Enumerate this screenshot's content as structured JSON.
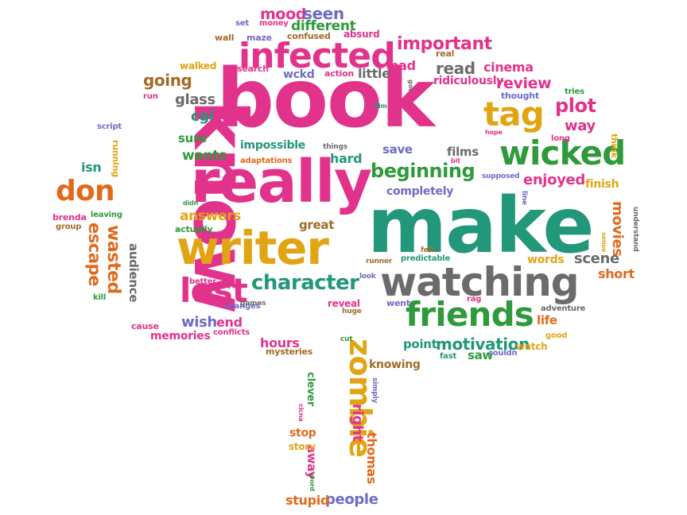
{
  "palette": {
    "pink": "#e2338c",
    "green": "#2f9a3c",
    "orange": "#e06a1c",
    "gold": "#e1a514",
    "teal": "#23977a",
    "gray": "#6b6b6b",
    "purple": "#6e6bc4",
    "brown": "#a26c28"
  },
  "words": [
    {
      "text": "book",
      "color": "pink"
    },
    {
      "text": "make",
      "color": "teal"
    },
    {
      "text": "know",
      "color": "pink"
    },
    {
      "text": "really",
      "color": "pink"
    },
    {
      "text": "writer",
      "color": "gold"
    },
    {
      "text": "watching",
      "color": "gray"
    },
    {
      "text": "infected",
      "color": "pink"
    },
    {
      "text": "wicked",
      "color": "green"
    },
    {
      "text": "friends",
      "color": "green"
    },
    {
      "text": "lost",
      "color": "pink"
    },
    {
      "text": "tag",
      "color": "gold"
    },
    {
      "text": "zombie",
      "color": "gold"
    },
    {
      "text": "character",
      "color": "teal"
    },
    {
      "text": "don",
      "color": "orange"
    },
    {
      "text": "beginning",
      "color": "green"
    },
    {
      "text": "important",
      "color": "pink"
    },
    {
      "text": "plot",
      "color": "pink"
    },
    {
      "text": "wasted",
      "color": "orange"
    },
    {
      "text": "escape",
      "color": "orange"
    },
    {
      "text": "motivation",
      "color": "teal"
    },
    {
      "text": "read",
      "color": "gray"
    },
    {
      "text": "review",
      "color": "pink"
    },
    {
      "text": "going",
      "color": "brown"
    },
    {
      "text": "glass",
      "color": "gray"
    },
    {
      "text": "mood",
      "color": "pink"
    },
    {
      "text": "seen",
      "color": "purple"
    },
    {
      "text": "different",
      "color": "green"
    },
    {
      "text": "cinema",
      "color": "pink"
    },
    {
      "text": "way",
      "color": "pink"
    },
    {
      "text": "enjoyed",
      "color": "pink"
    },
    {
      "text": "movies",
      "color": "orange"
    },
    {
      "text": "scene",
      "color": "gray"
    },
    {
      "text": "short",
      "color": "orange"
    },
    {
      "text": "answers",
      "color": "gold"
    },
    {
      "text": "wants",
      "color": "green"
    },
    {
      "text": "impossible",
      "color": "teal"
    },
    {
      "text": "hard",
      "color": "teal"
    },
    {
      "text": "save",
      "color": "purple"
    },
    {
      "text": "films",
      "color": "gray"
    },
    {
      "text": "completely",
      "color": "purple"
    },
    {
      "text": "cgi",
      "color": "teal"
    },
    {
      "text": "sure",
      "color": "green"
    },
    {
      "text": "isn",
      "color": "teal"
    },
    {
      "text": "audience",
      "color": "gray"
    },
    {
      "text": "people",
      "color": "purple"
    },
    {
      "text": "thomas",
      "color": "orange"
    },
    {
      "text": "right",
      "color": "pink"
    },
    {
      "text": "knowing",
      "color": "brown"
    },
    {
      "text": "point",
      "color": "teal"
    },
    {
      "text": "saw",
      "color": "green"
    },
    {
      "text": "watch",
      "color": "gold"
    },
    {
      "text": "hours",
      "color": "pink"
    },
    {
      "text": "mysteries",
      "color": "brown"
    },
    {
      "text": "memories",
      "color": "pink"
    },
    {
      "text": "wish",
      "color": "purple"
    },
    {
      "text": "end",
      "color": "pink"
    },
    {
      "text": "life",
      "color": "orange"
    },
    {
      "text": "great",
      "color": "brown"
    },
    {
      "text": "words",
      "color": "gold"
    },
    {
      "text": "finish",
      "color": "gold"
    },
    {
      "text": "little",
      "color": "gray"
    },
    {
      "text": "bad",
      "color": "pink"
    },
    {
      "text": "ridiculously",
      "color": "pink"
    },
    {
      "text": "wckd",
      "color": "purple"
    },
    {
      "text": "stupid",
      "color": "orange"
    },
    {
      "text": "away",
      "color": "pink"
    },
    {
      "text": "stop",
      "color": "orange"
    },
    {
      "text": "story",
      "color": "gold"
    },
    {
      "text": "clever",
      "color": "green"
    },
    {
      "text": "wall",
      "color": "brown"
    },
    {
      "text": "maze",
      "color": "purple"
    },
    {
      "text": "money",
      "color": "pink"
    },
    {
      "text": "set",
      "color": "purple"
    },
    {
      "text": "confused",
      "color": "brown"
    },
    {
      "text": "absurd",
      "color": "pink"
    },
    {
      "text": "walked",
      "color": "gold"
    },
    {
      "text": "search",
      "color": "pink"
    },
    {
      "text": "action",
      "color": "pink"
    },
    {
      "text": "real",
      "color": "brown"
    },
    {
      "text": "run",
      "color": "pink"
    },
    {
      "text": "script",
      "color": "purple"
    },
    {
      "text": "running",
      "color": "gold"
    },
    {
      "text": "adaptations",
      "color": "orange"
    },
    {
      "text": "things",
      "color": "gray"
    },
    {
      "text": "brenda",
      "color": "pink"
    },
    {
      "text": "group",
      "color": "brown"
    },
    {
      "text": "leaving",
      "color": "green"
    },
    {
      "text": "didn",
      "color": "green"
    },
    {
      "text": "actually",
      "color": "green"
    },
    {
      "text": "changes",
      "color": "purple"
    },
    {
      "text": "better",
      "color": "pink"
    },
    {
      "text": "kill",
      "color": "green"
    },
    {
      "text": "games",
      "color": "gray"
    },
    {
      "text": "cause",
      "color": "pink"
    },
    {
      "text": "conflicts",
      "color": "pink"
    },
    {
      "text": "look",
      "color": "purple"
    },
    {
      "text": "felt",
      "color": "brown"
    },
    {
      "text": "runner",
      "color": "brown"
    },
    {
      "text": "predictable",
      "color": "teal"
    },
    {
      "text": "reveal",
      "color": "pink"
    },
    {
      "text": "huge",
      "color": "brown"
    },
    {
      "text": "went",
      "color": "purple"
    },
    {
      "text": "adventure",
      "color": "gray"
    },
    {
      "text": "good",
      "color": "gold"
    },
    {
      "text": "long",
      "color": "pink"
    },
    {
      "text": "tries",
      "color": "green"
    },
    {
      "text": "think",
      "color": "gold"
    },
    {
      "text": "understand",
      "color": "gray"
    },
    {
      "text": "sense",
      "color": "gold"
    },
    {
      "text": "rag",
      "color": "pink"
    },
    {
      "text": "fast",
      "color": "teal"
    },
    {
      "text": "couldn",
      "color": "purple"
    },
    {
      "text": "cut",
      "color": "green"
    },
    {
      "text": "simply",
      "color": "purple"
    },
    {
      "text": "cicna",
      "color": "pink"
    },
    {
      "text": "word",
      "color": "green"
    },
    {
      "text": "film",
      "color": "teal"
    },
    {
      "text": "got",
      "color": "gray"
    },
    {
      "text": "hope",
      "color": "pink"
    },
    {
      "text": "thought",
      "color": "purple"
    },
    {
      "text": "bit",
      "color": "pink"
    },
    {
      "text": "supposed",
      "color": "purple"
    },
    {
      "text": "line",
      "color": "purple"
    }
  ]
}
